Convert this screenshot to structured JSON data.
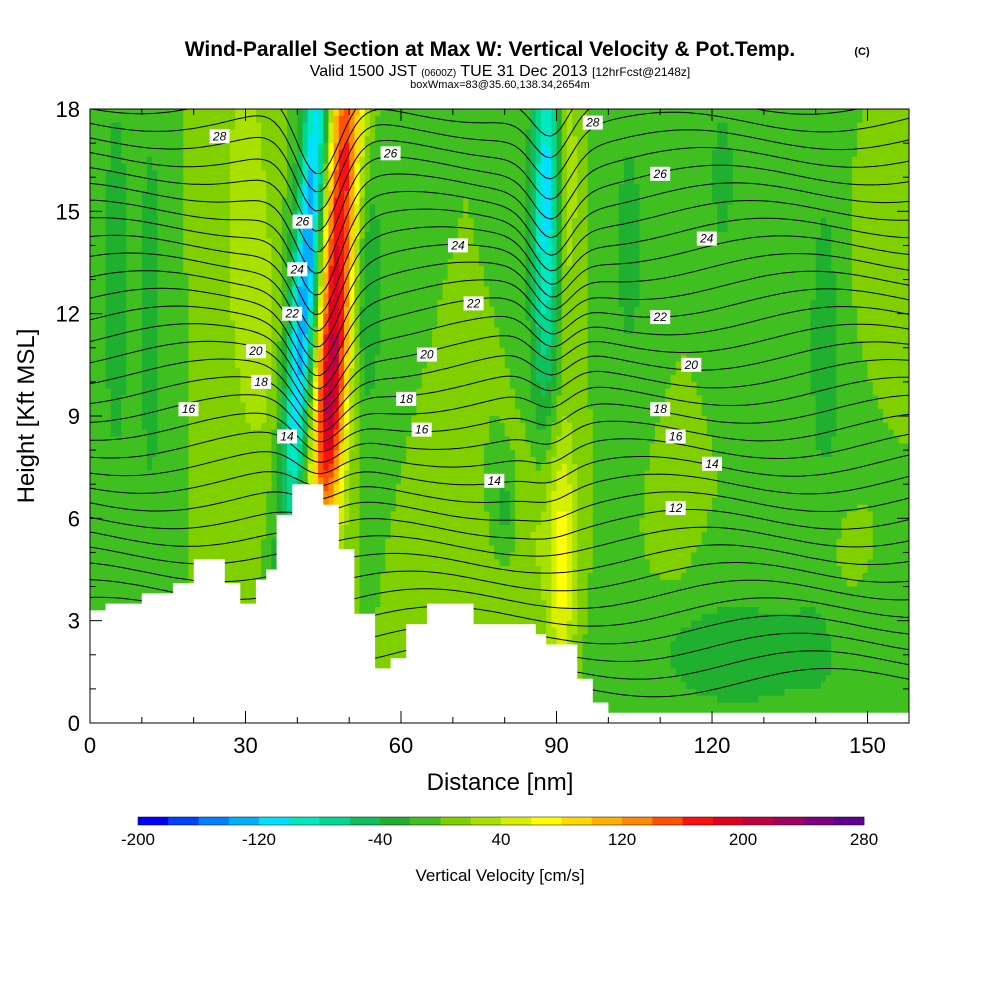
{
  "title": {
    "main": "Wind-Parallel Section at Max W: Vertical Velocity & Pot.Temp.",
    "main_mark": "(C)",
    "valid_pre": "Valid 1500 JST",
    "valid_z": "(0600Z)",
    "valid_date": "TUE 31 Dec 2013",
    "fcst": "[12hrFcst@2148z]",
    "box": "boxWmax=83@35.60,138.34,2654m"
  },
  "chart_data": {
    "type": "heatmap",
    "xlabel": "Distance [nm]",
    "ylabel": "Height [Kft MSL]",
    "xlim": [
      0,
      158
    ],
    "ylim": [
      0,
      18
    ],
    "x_ticks": [
      "0",
      "30",
      "60",
      "90",
      "120",
      "150"
    ],
    "x_tick_values": [
      0,
      30,
      60,
      90,
      120,
      150
    ],
    "y_ticks": [
      "0",
      "3",
      "6",
      "9",
      "12",
      "15",
      "18"
    ],
    "y_tick_values": [
      0,
      3,
      6,
      9,
      12,
      15,
      18
    ],
    "colorbar": {
      "label": "Vertical Velocity [cm/s]",
      "labels": [
        "-200",
        "-120",
        "-40",
        "40",
        "120",
        "200",
        "280"
      ],
      "label_values": [
        -200,
        -120,
        -40,
        40,
        120,
        200,
        280
      ],
      "min": -200,
      "max": 280,
      "step": 20,
      "colors": [
        "#0000ff",
        "#0040ff",
        "#0080ff",
        "#00b0ff",
        "#00e0ff",
        "#00e8c0",
        "#00d890",
        "#10c060",
        "#20b030",
        "#40c020",
        "#80d000",
        "#a8e000",
        "#d8f000",
        "#ffff00",
        "#ffd800",
        "#ffb000",
        "#ff8800",
        "#ff5000",
        "#ff1010",
        "#e00020",
        "#c00040",
        "#a00060",
        "#800080",
        "#600090"
      ]
    },
    "terrain": [
      [
        0,
        3.3
      ],
      [
        3,
        3.3
      ],
      [
        3,
        3.5
      ],
      [
        10,
        3.5
      ],
      [
        10,
        3.8
      ],
      [
        16,
        3.8
      ],
      [
        16,
        4.1
      ],
      [
        20,
        4.1
      ],
      [
        20,
        4.8
      ],
      [
        26,
        4.8
      ],
      [
        26,
        4.1
      ],
      [
        29,
        4.1
      ],
      [
        29,
        3.5
      ],
      [
        32,
        3.5
      ],
      [
        32,
        4.2
      ],
      [
        34,
        4.2
      ],
      [
        34,
        4.5
      ],
      [
        36,
        4.5
      ],
      [
        36,
        6.1
      ],
      [
        39,
        6.1
      ],
      [
        39,
        7.0
      ],
      [
        45,
        7.0
      ],
      [
        45,
        6.4
      ],
      [
        48,
        6.4
      ],
      [
        48,
        5.1
      ],
      [
        51,
        5.1
      ],
      [
        51,
        3.2
      ],
      [
        55,
        3.2
      ],
      [
        55,
        1.6
      ],
      [
        58,
        1.6
      ],
      [
        58,
        1.9
      ],
      [
        61,
        1.9
      ],
      [
        61,
        2.9
      ],
      [
        65,
        2.9
      ],
      [
        65,
        3.5
      ],
      [
        74,
        3.5
      ],
      [
        74,
        2.9
      ],
      [
        86,
        2.9
      ],
      [
        86,
        2.6
      ],
      [
        88,
        2.6
      ],
      [
        88,
        2.3
      ],
      [
        94,
        2.3
      ],
      [
        94,
        1.3
      ],
      [
        97,
        1.3
      ],
      [
        97,
        0.6
      ],
      [
        100,
        0.6
      ],
      [
        100,
        0.3
      ],
      [
        158,
        0.3
      ],
      [
        158,
        0
      ],
      [
        0,
        0
      ]
    ],
    "velocity_features": [
      {
        "x": 42,
        "y": 13.5,
        "sx": 2.0,
        "sy": 6.0,
        "tilt": 0.45,
        "w": -150
      },
      {
        "x": 48,
        "y": 14.0,
        "sx": 2.5,
        "sy": 6.5,
        "tilt": 0.35,
        "w": 190
      },
      {
        "x": 46,
        "y": 9.0,
        "sx": 2.0,
        "sy": 2.0,
        "tilt": 0.3,
        "w": 70
      },
      {
        "x": 53,
        "y": 13.0,
        "sx": 2.5,
        "sy": 3.0,
        "tilt": 0.0,
        "w": -45
      },
      {
        "x": 30,
        "y": 15.0,
        "sx": 3.5,
        "sy": 4.5,
        "tilt": 0.0,
        "w": 30
      },
      {
        "x": 33,
        "y": 11.0,
        "sx": 2.5,
        "sy": 2.5,
        "tilt": 0.0,
        "w": 20
      },
      {
        "x": 88,
        "y": 15.5,
        "sx": 2.0,
        "sy": 4.5,
        "tilt": 0.05,
        "w": -110
      },
      {
        "x": 92,
        "y": 16.0,
        "sx": 1.5,
        "sy": 3.0,
        "tilt": 0.0,
        "w": 40
      },
      {
        "x": 91,
        "y": 4.8,
        "sx": 2.0,
        "sy": 2.8,
        "tilt": 0.0,
        "w": 70
      },
      {
        "x": 86,
        "y": 5.8,
        "sx": 2.5,
        "sy": 1.8,
        "tilt": 0.0,
        "w": 25
      },
      {
        "x": 80,
        "y": 6.3,
        "sx": 1.5,
        "sy": 0.8,
        "tilt": 0.0,
        "w": -30
      },
      {
        "x": 5,
        "y": 13.0,
        "sx": 3.0,
        "sy": 7.0,
        "tilt": 0.0,
        "w": -25
      },
      {
        "x": 12,
        "y": 12.0,
        "sx": 2.0,
        "sy": 6.0,
        "tilt": 0.0,
        "w": -25
      },
      {
        "x": 104,
        "y": 14.0,
        "sx": 3.0,
        "sy": 4.0,
        "tilt": 0.0,
        "w": -25
      },
      {
        "x": 122,
        "y": 16.0,
        "sx": 2.5,
        "sy": 2.5,
        "tilt": 0.0,
        "w": -25
      },
      {
        "x": 142,
        "y": 11.0,
        "sx": 4.0,
        "sy": 6.0,
        "tilt": 0.0,
        "w": -25
      },
      {
        "x": 112,
        "y": 6.0,
        "sx": 3.0,
        "sy": 1.5,
        "tilt": 0.0,
        "w": 15
      },
      {
        "x": 145,
        "y": 5.0,
        "sx": 3.0,
        "sy": 1.5,
        "tilt": 0.0,
        "w": 15
      },
      {
        "x": 125,
        "y": 2.0,
        "sx": 15.0,
        "sy": 1.5,
        "tilt": 0.0,
        "w": -30
      },
      {
        "x": 70,
        "y": 4.0,
        "sx": 5.0,
        "sy": 1.5,
        "tilt": 0.0,
        "w": 12
      },
      {
        "x": 150,
        "y": 14.0,
        "sx": 3.0,
        "sy": 2.0,
        "tilt": 0.0,
        "w": 20
      }
    ],
    "isentrope_labels": [
      {
        "text": "28",
        "x": 25,
        "y": 17.2
      },
      {
        "text": "26",
        "x": 41,
        "y": 14.7
      },
      {
        "text": "24",
        "x": 40,
        "y": 13.3
      },
      {
        "text": "22",
        "x": 39,
        "y": 12.0
      },
      {
        "text": "20",
        "x": 32,
        "y": 10.9
      },
      {
        "text": "18",
        "x": 33,
        "y": 10.0
      },
      {
        "text": "16",
        "x": 19,
        "y": 9.2
      },
      {
        "text": "14",
        "x": 38,
        "y": 8.4
      },
      {
        "text": "26",
        "x": 58,
        "y": 16.7
      },
      {
        "text": "24",
        "x": 71,
        "y": 14.0
      },
      {
        "text": "22",
        "x": 74,
        "y": 12.3
      },
      {
        "text": "20",
        "x": 65,
        "y": 10.8
      },
      {
        "text": "18",
        "x": 61,
        "y": 9.5
      },
      {
        "text": "16",
        "x": 64,
        "y": 8.6
      },
      {
        "text": "14",
        "x": 78,
        "y": 7.1
      },
      {
        "text": "28",
        "x": 97,
        "y": 17.6
      },
      {
        "text": "26",
        "x": 110,
        "y": 16.1
      },
      {
        "text": "24",
        "x": 119,
        "y": 14.2
      },
      {
        "text": "22",
        "x": 110,
        "y": 11.9
      },
      {
        "text": "20",
        "x": 116,
        "y": 10.5
      },
      {
        "text": "18",
        "x": 110,
        "y": 9.2
      },
      {
        "text": "16",
        "x": 113,
        "y": 8.4
      },
      {
        "text": "14",
        "x": 120,
        "y": 7.6
      },
      {
        "text": "12",
        "x": 113,
        "y": 6.3
      }
    ]
  },
  "colors": {
    "background": "#ffffff",
    "terrain": "#ffffff",
    "isentrope": "#000000"
  }
}
